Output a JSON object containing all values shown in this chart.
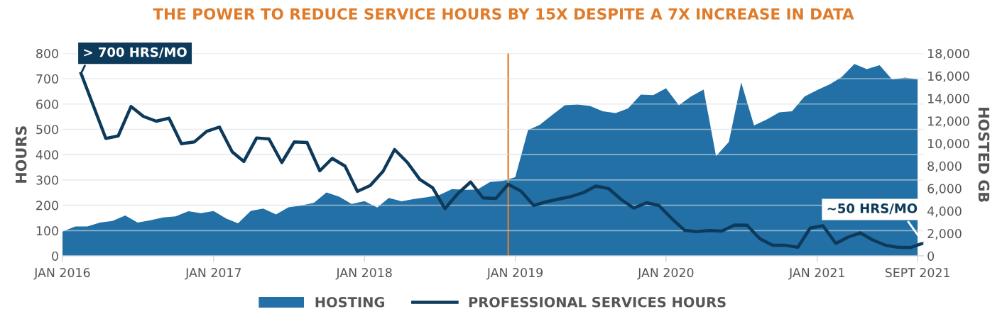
{
  "chart_data": {
    "type": "line",
    "title": "THE POWER TO REDUCE SERVICE HOURS BY 15X DESPITE A 7X INCREASE IN DATA",
    "ylabel": "HOURS",
    "y2label": "HOSTED GB",
    "xlim": [
      "2016-01-01",
      "2021-09-15"
    ],
    "xticks": [
      {
        "value": "2016-01-01",
        "label": "JAN 2016"
      },
      {
        "value": "2017-01-01",
        "label": "JAN 2017"
      },
      {
        "value": "2018-01-01",
        "label": "JAN 2018"
      },
      {
        "value": "2019-01-01",
        "label": "JAN 2019"
      },
      {
        "value": "2020-01-01",
        "label": "JAN 2020"
      },
      {
        "value": "2021-01-01",
        "label": "JAN 2021"
      },
      {
        "value": "2021-09-01",
        "label": "SEPT 2021"
      }
    ],
    "ylim": [
      0,
      800
    ],
    "yticks": [
      0,
      100,
      200,
      300,
      400,
      500,
      600,
      700,
      800
    ],
    "y2lim": [
      0,
      18000
    ],
    "y2ticks": [
      0,
      {
        "value": 2000,
        "label": "2,000"
      },
      {
        "value": 4000,
        "label": "4,000"
      },
      {
        "value": 6000,
        "label": "6,000"
      },
      {
        "value": 8000,
        "label": "8,000"
      },
      {
        "value": 10000,
        "label": "10,000"
      },
      {
        "value": 12000,
        "label": "12,000"
      },
      {
        "value": 14000,
        "label": "14,000"
      },
      {
        "value": 16000,
        "label": "16,000"
      },
      {
        "value": 18000,
        "label": "18,000"
      }
    ],
    "grid": "y",
    "legend": "bottom",
    "ref_lines": [
      {
        "axis": "x",
        "value": "2018-12-15",
        "color": "#e07b2a"
      }
    ],
    "annotations": [
      {
        "text": "> 700 HRS/MO",
        "x": "2016-02-15",
        "y": 721
      },
      {
        "text": "~50 HRS/MO",
        "x": "2021-09-15",
        "y": 51
      }
    ],
    "series": [
      {
        "name": "HOSTING",
        "type": "area",
        "axis": "y2",
        "color": "#2270a6",
        "x": [
          "2016-01",
          "2016-02",
          "2016-03",
          "2016-04",
          "2016-05",
          "2016-06",
          "2016-07",
          "2016-08",
          "2016-09",
          "2016-10",
          "2016-11",
          "2016-12",
          "2017-01",
          "2017-02",
          "2017-03",
          "2017-04",
          "2017-05",
          "2017-06",
          "2017-07",
          "2017-08",
          "2017-09",
          "2017-10",
          "2017-11",
          "2017-12",
          "2018-01",
          "2018-02",
          "2018-03",
          "2018-04",
          "2018-05",
          "2018-06",
          "2018-07",
          "2018-08",
          "2018-09",
          "2018-10",
          "2018-11",
          "2018-12",
          "2019-01",
          "2019-02",
          "2019-03",
          "2019-04",
          "2019-05",
          "2019-06",
          "2019-07",
          "2019-08",
          "2019-09",
          "2019-10",
          "2019-11",
          "2019-12",
          "2020-01",
          "2020-02",
          "2020-03",
          "2020-04",
          "2020-05",
          "2020-06",
          "2020-07",
          "2020-08",
          "2020-09",
          "2020-10",
          "2020-11",
          "2020-12",
          "2021-01",
          "2021-02",
          "2021-03",
          "2021-04",
          "2021-05",
          "2021-06",
          "2021-07",
          "2021-08",
          "2021-09"
        ],
        "values": [
          2160,
          2620,
          2620,
          2960,
          3100,
          3590,
          2960,
          3170,
          3420,
          3520,
          3970,
          3800,
          3990,
          3310,
          2900,
          4010,
          4200,
          3690,
          4320,
          4470,
          4720,
          5640,
          5270,
          4620,
          4870,
          4300,
          5160,
          4850,
          5060,
          5220,
          5410,
          5940,
          5870,
          5890,
          6570,
          6670,
          6990,
          11180,
          11640,
          12540,
          13390,
          13450,
          13320,
          12860,
          12690,
          13110,
          14330,
          14290,
          14900,
          13390,
          14160,
          14790,
          8870,
          10130,
          15420,
          11600,
          12130,
          12760,
          12860,
          14160,
          14750,
          15270,
          15900,
          17060,
          16600,
          16950,
          15690,
          15840,
          15690
        ]
      },
      {
        "name": "PROFESSIONAL SERVICES HOURS",
        "axis": "y",
        "color": "#0d3a5a",
        "x": [
          "2016-02-15",
          "2016-04-15",
          "2016-05-15",
          "2016-06-15",
          "2016-07-15",
          "2016-08-15",
          "2016-09-15",
          "2016-10-15",
          "2016-11-15",
          "2016-12-15",
          "2017-01-15",
          "2017-02-15",
          "2017-03-15",
          "2017-04-15",
          "2017-05-15",
          "2017-06-15",
          "2017-07-15",
          "2017-08-15",
          "2017-09-15",
          "2017-10-15",
          "2017-11-15",
          "2017-12-15",
          "2018-01-15",
          "2018-02-15",
          "2018-03-15",
          "2018-04-15",
          "2018-05-15",
          "2018-06-15",
          "2018-07-15",
          "2018-08-15",
          "2018-09-15",
          "2018-10-15",
          "2018-11-15",
          "2018-12-15",
          "2019-01-15",
          "2019-02-15",
          "2019-03-15",
          "2019-04-15",
          "2019-05-15",
          "2019-06-15",
          "2019-07-15",
          "2019-08-15",
          "2019-09-15",
          "2019-10-15",
          "2019-11-15",
          "2019-12-15",
          "2020-01-15",
          "2020-02-15",
          "2020-03-15",
          "2020-04-15",
          "2020-05-15",
          "2020-06-15",
          "2020-07-15",
          "2020-08-15",
          "2020-09-15",
          "2020-10-15",
          "2020-11-15",
          "2020-12-15",
          "2021-01-15",
          "2021-02-15",
          "2021-03-15",
          "2021-04-15",
          "2021-05-15",
          "2021-06-15",
          "2021-07-15",
          "2021-08-15",
          "2021-09-15"
        ],
        "values": [
          721,
          464,
          474,
          590,
          551,
          532,
          544,
          443,
          450,
          492,
          509,
          411,
          373,
          466,
          462,
          369,
          450,
          448,
          336,
          385,
          355,
          255,
          278,
          334,
          420,
          369,
          302,
          269,
          187,
          246,
          292,
          229,
          227,
          283,
          256,
          199,
          213,
          224,
          234,
          250,
          276,
          266,
          222,
          189,
          210,
          199,
          147,
          101,
          96,
          100,
          98,
          122,
          121,
          68,
          42,
          42,
          34,
          110,
          119,
          49,
          73,
          91,
          63,
          42,
          34,
          33,
          51
        ]
      }
    ]
  }
}
